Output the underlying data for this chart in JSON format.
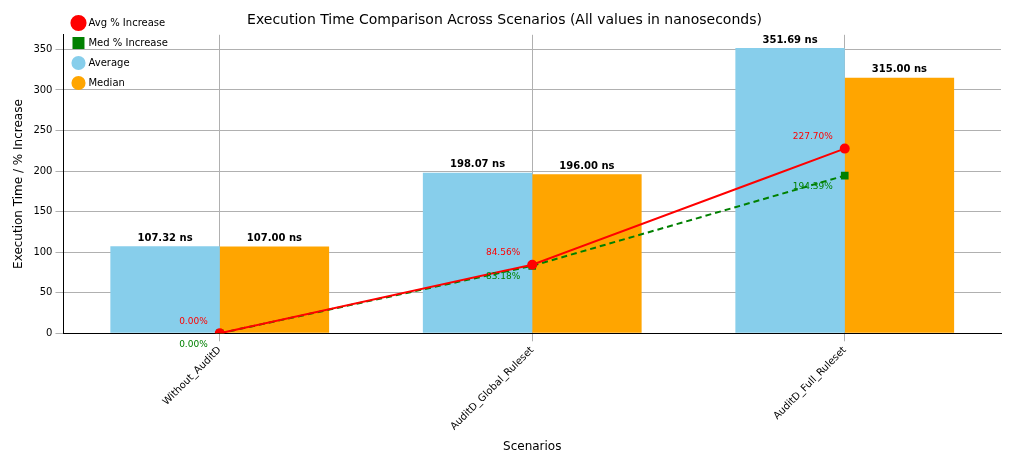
{
  "chart_data": {
    "type": "bar",
    "title": "Execution Time Comparison Across Scenarios (All values in nanoseconds)",
    "xlabel": "Scenarios",
    "ylabel": "Execution Time / % Increase",
    "categories": [
      "Without_AuditD",
      "AuditD_Global_Ruleset",
      "AuditD_Full_Ruleset"
    ],
    "series": [
      {
        "name": "Avg % Increase",
        "type": "line",
        "color": "#ff0000",
        "marker": "circle",
        "line_style": "solid",
        "values": [
          0,
          84.56,
          227.7
        ],
        "value_labels": [
          "0.00%",
          "84.56%",
          "227.70%"
        ]
      },
      {
        "name": "Med % Increase",
        "type": "line",
        "color": "#008000",
        "marker": "square",
        "line_style": "dashed",
        "values": [
          0,
          83.18,
          194.39
        ],
        "value_labels": [
          "0.00%",
          "83.18%",
          "194.39%"
        ]
      },
      {
        "name": "Average",
        "color": "#87ceeb",
        "values": [
          107.32,
          198.07,
          351.69
        ],
        "value_labels": [
          "107.32 ns",
          "198.07 ns",
          "351.69 ns"
        ]
      },
      {
        "name": "Median",
        "color": "#ffa500",
        "values": [
          107,
          196,
          315
        ],
        "value_labels": [
          "107.00 ns",
          "196.00 ns",
          "315.00 ns"
        ]
      }
    ],
    "ylim": [
      0,
      368
    ],
    "yticks": [
      0,
      50,
      100,
      150,
      200,
      250,
      300,
      350
    ],
    "grid": true,
    "legend": "top left"
  }
}
